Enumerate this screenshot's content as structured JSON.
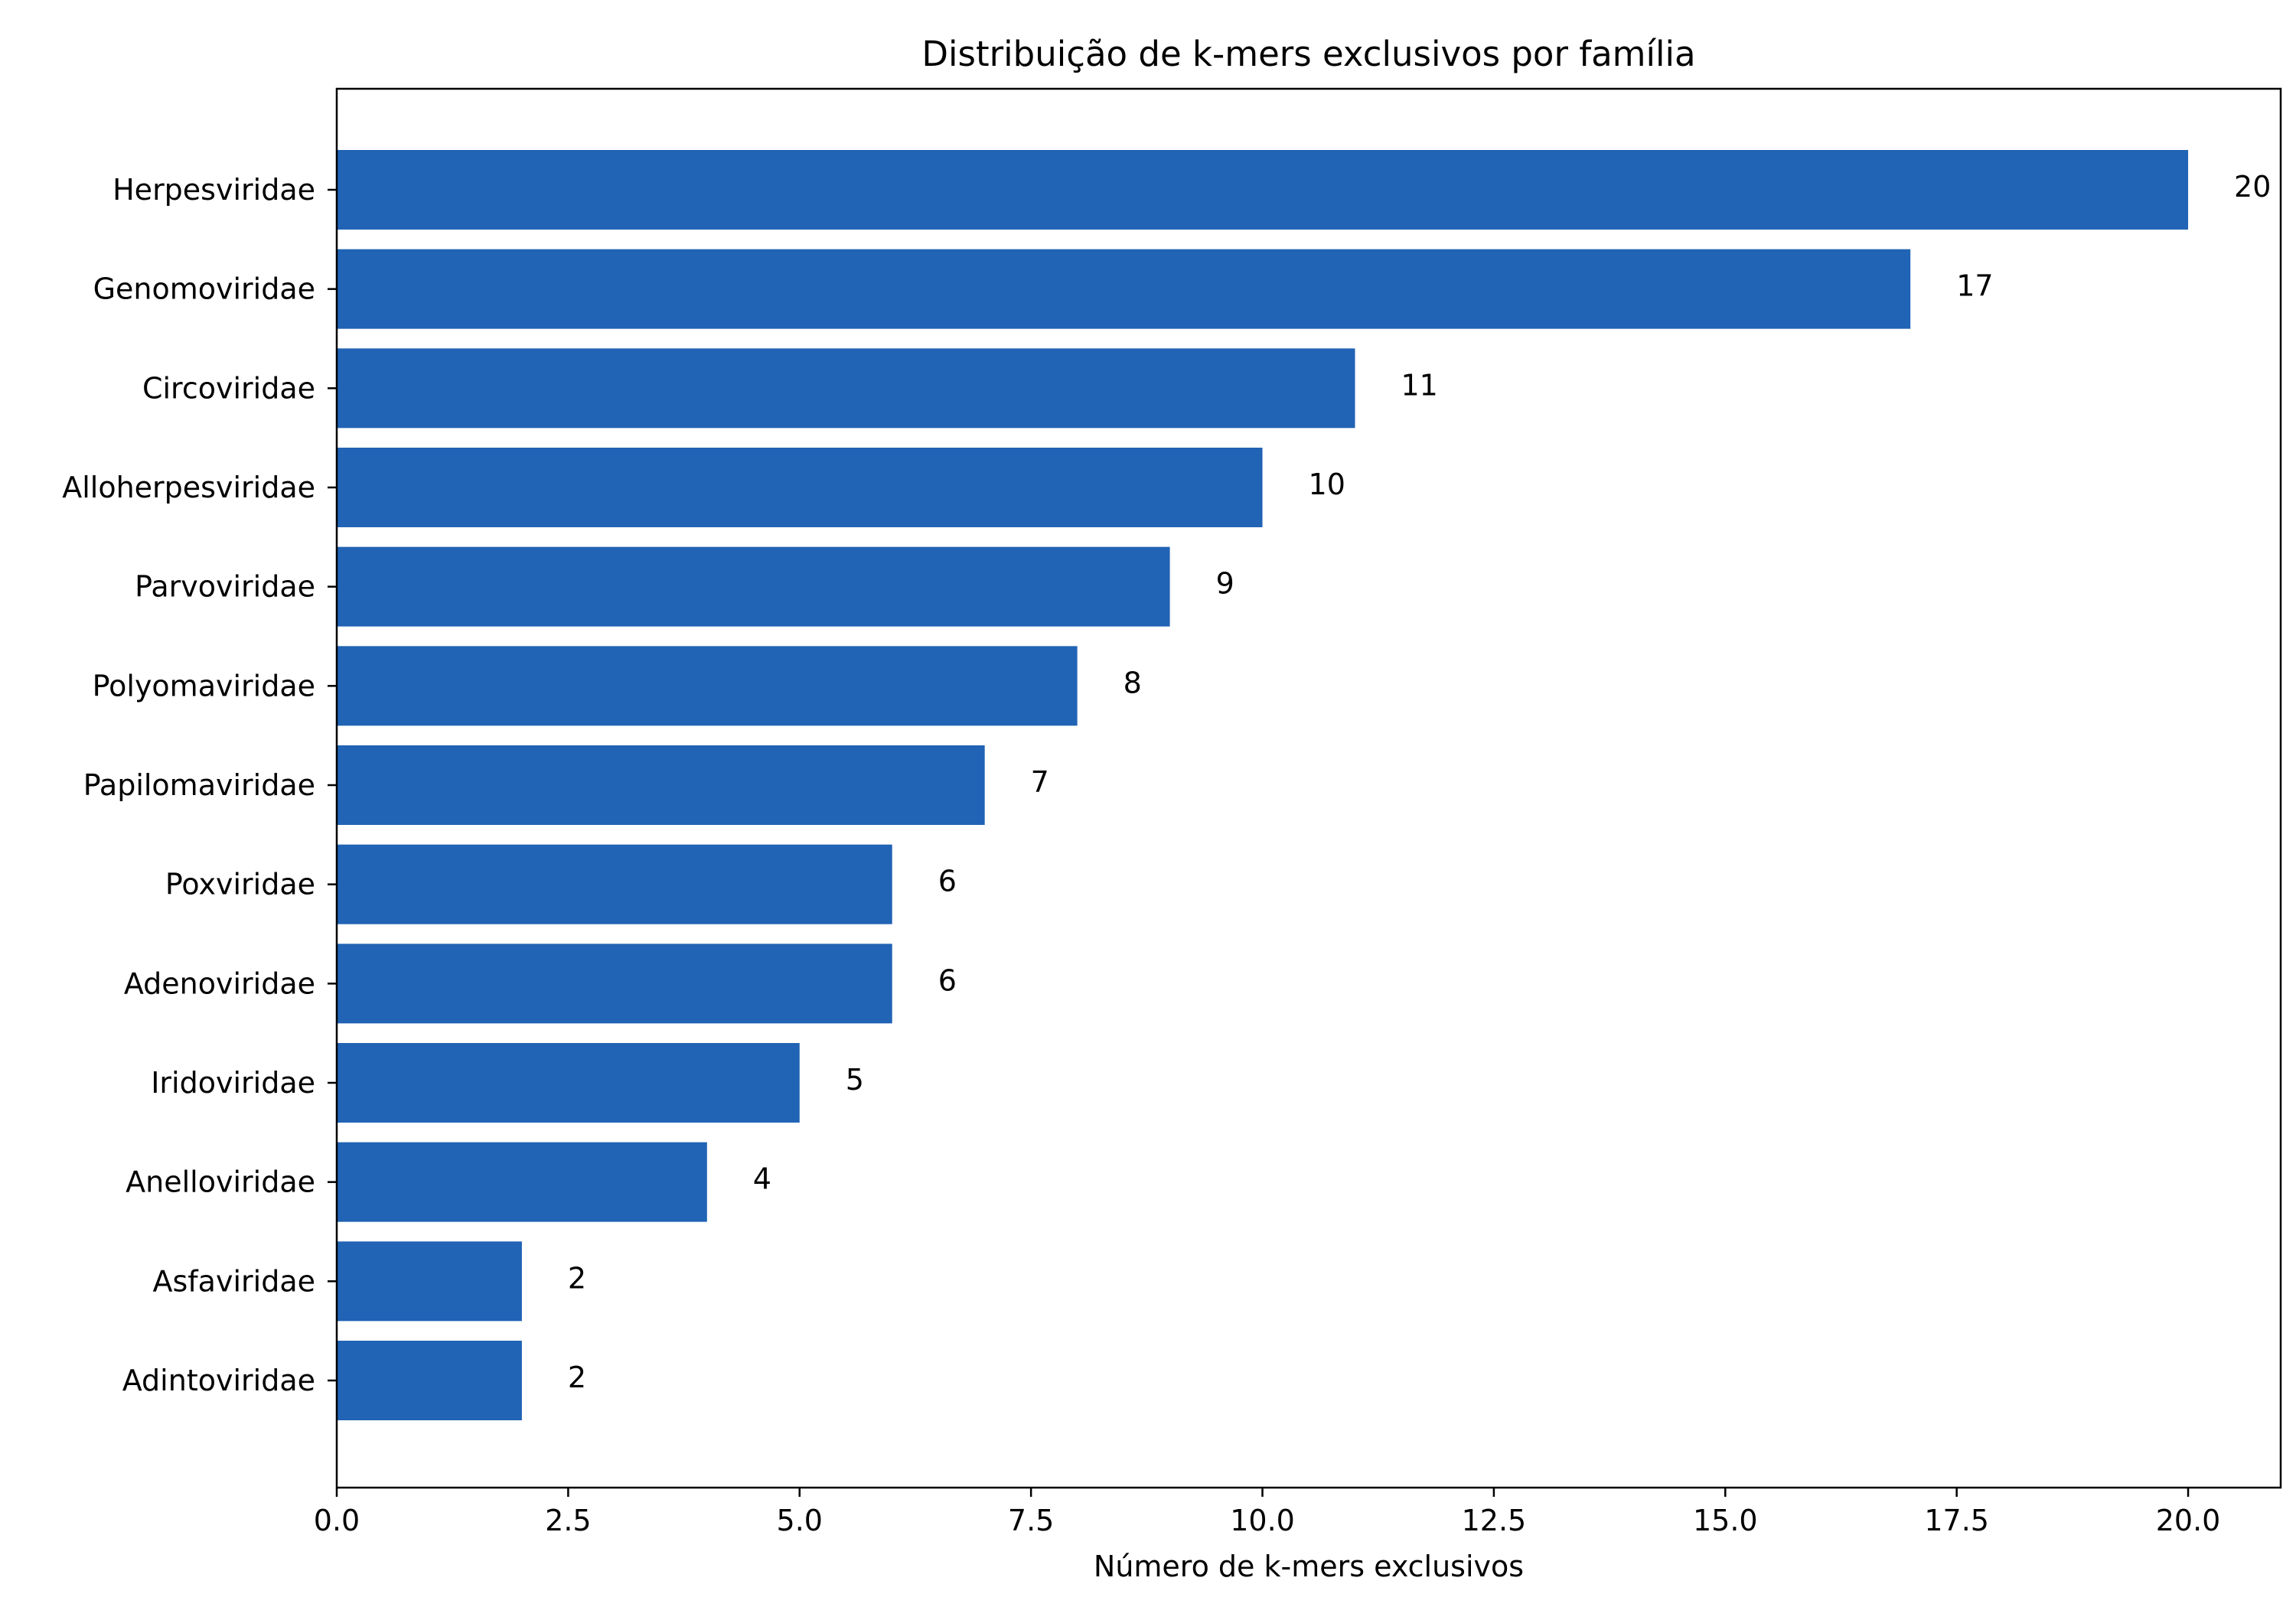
{
  "chart_data": {
    "type": "bar",
    "orientation": "horizontal",
    "title": "Distribuição de k-mers exclusivos por família",
    "xlabel": "Número de k-mers exclusivos",
    "ylabel": "",
    "categories": [
      "Herpesviridae",
      "Genomoviridae",
      "Circoviridae",
      "Alloherpesviridae",
      "Parvoviridae",
      "Polyomaviridae",
      "Papilomaviridae",
      "Poxviridae",
      "Adenoviridae",
      "Iridoviridae",
      "Anelloviridae",
      "Asfaviridae",
      "Adintoviridae"
    ],
    "values": [
      20,
      17,
      11,
      10,
      9,
      8,
      7,
      6,
      6,
      5,
      4,
      2,
      2
    ],
    "data_labels": [
      "20",
      "17",
      "11",
      "10",
      "9",
      "8",
      "7",
      "6",
      "6",
      "5",
      "4",
      "2",
      "2"
    ],
    "xlim": [
      0,
      21
    ],
    "xticks": [
      0,
      2.5,
      5,
      7.5,
      10,
      12.5,
      15,
      17.5,
      20
    ],
    "xtick_labels": [
      "0.0",
      "2.5",
      "5.0",
      "7.5",
      "10.0",
      "12.5",
      "15.0",
      "17.5",
      "20.0"
    ],
    "grid": false,
    "legend": "none",
    "bar_color": "#2163B4",
    "axis_color": "#000000"
  }
}
